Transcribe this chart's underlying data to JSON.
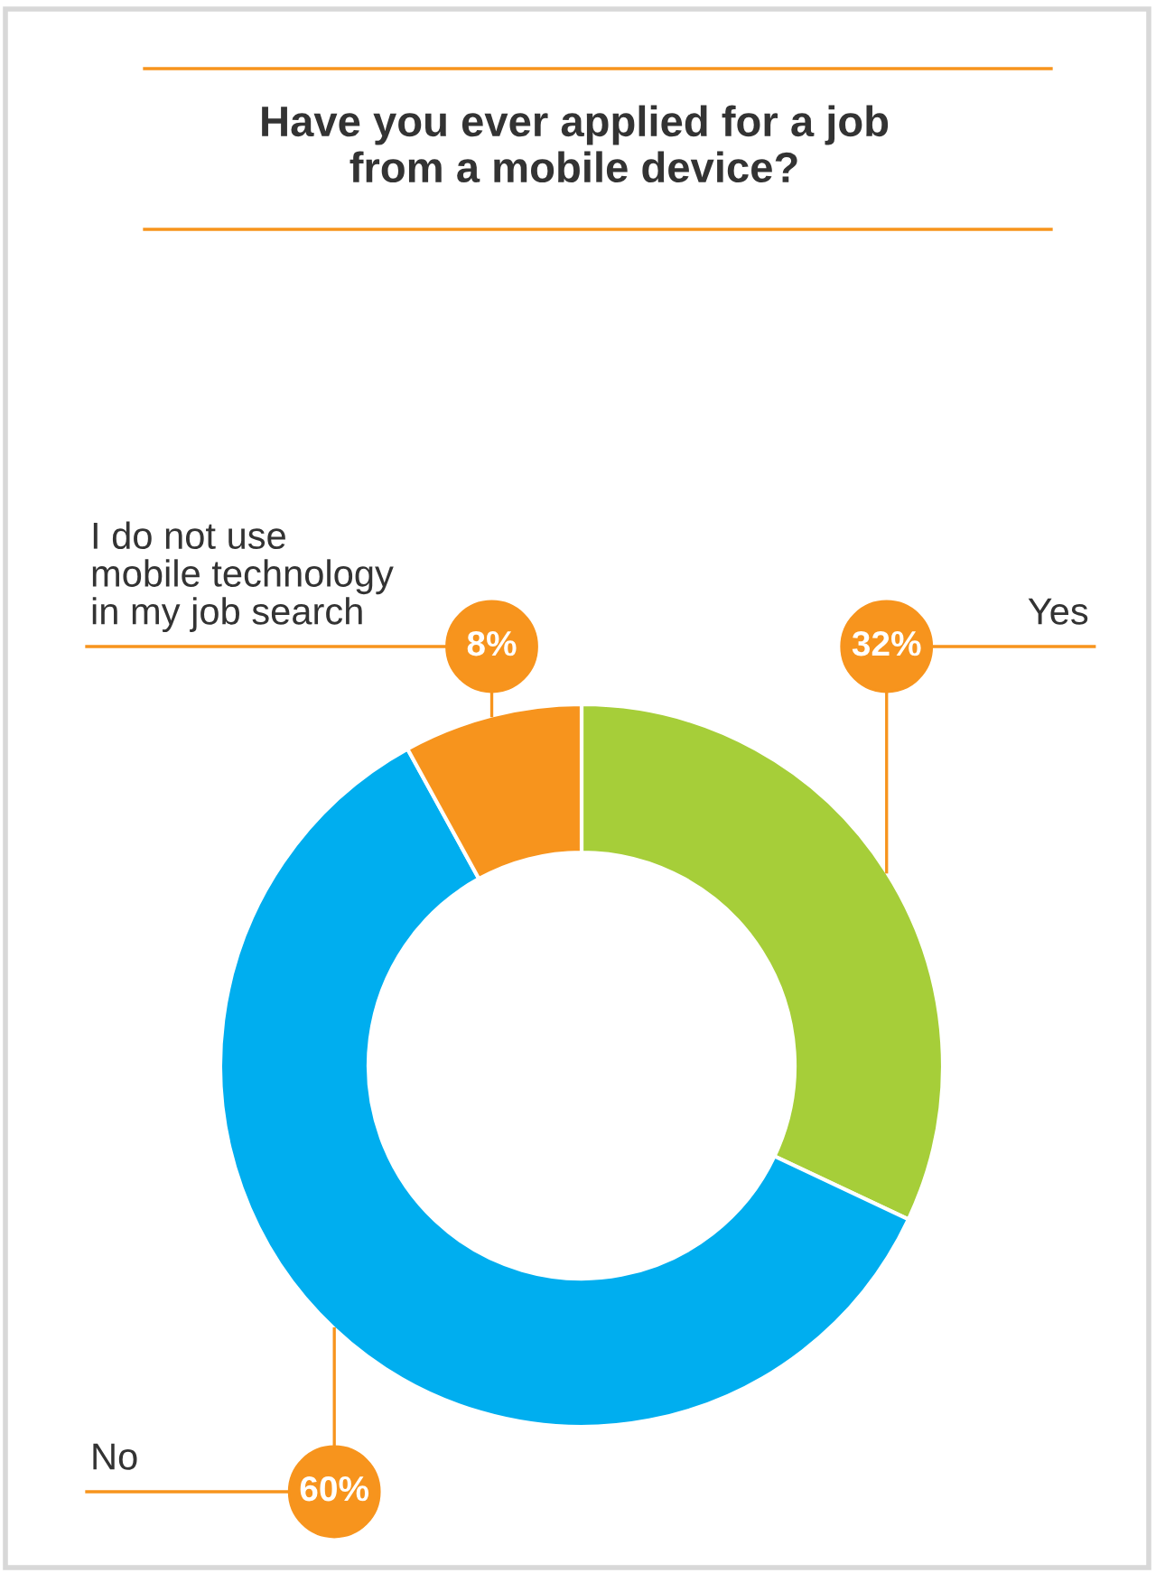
{
  "chart_data": {
    "type": "donut",
    "title": "Have you ever applied for a job\nfrom a mobile device?",
    "categories": [
      "Yes",
      "No",
      "I do not use\nmobile technology\nin my job search"
    ],
    "values": [
      32,
      60,
      8
    ],
    "colors": [
      "#a6ce39",
      "#00aeef",
      "#f7941d"
    ],
    "value_labels": [
      "32%",
      "60%",
      "8%"
    ],
    "legend": false
  }
}
